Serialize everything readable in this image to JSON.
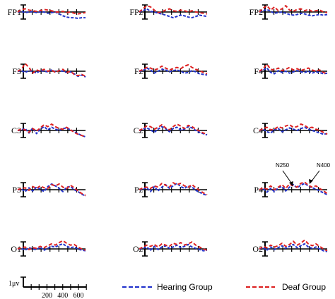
{
  "chart_data": {
    "type": "line",
    "series_names": [
      "Hearing Group",
      "Deaf Group"
    ],
    "colors": {
      "hearing": "#2233cc",
      "deaf": "#dd2222",
      "axis": "#000000"
    },
    "scale_bar": {
      "label": "1μv"
    },
    "x_axis": {
      "ticks": [
        200,
        400,
        600
      ],
      "range_ms": [
        -100,
        700
      ]
    },
    "annotations": [
      {
        "text": "N250"
      },
      {
        "text": "N400"
      }
    ],
    "electrodes": [
      {
        "name": "FP1",
        "hearing": [
          0,
          0.1,
          -0.1,
          0,
          0.05,
          -0.1,
          0,
          0,
          -0.2,
          -0.1,
          0,
          -0.3,
          -0.6,
          -0.8,
          -0.9,
          -0.9,
          -1.0,
          -0.9,
          -0.9
        ],
        "deaf": [
          0,
          0.4,
          0.5,
          0.3,
          0.2,
          0.1,
          0.2,
          0.4,
          0.3,
          0.2,
          0,
          0,
          0.1,
          -0.1,
          0,
          -0.2,
          -0.3,
          -0.2,
          -0.1
        ]
      },
      {
        "name": "FPz",
        "hearing": [
          0,
          0.2,
          0.5,
          0.1,
          0,
          -0.2,
          -0.3,
          -0.5,
          -0.7,
          -0.9,
          -0.7,
          -0.5,
          -0.6,
          -0.8,
          -0.9,
          -0.7,
          -0.5,
          -0.6,
          -0.7
        ],
        "deaf": [
          0,
          0.5,
          1.0,
          0.8,
          0.3,
          -0.1,
          0,
          0.3,
          0.5,
          0.2,
          0.1,
          0.3,
          0.2,
          0,
          0.2,
          0,
          -0.1,
          -0.2,
          -0.3
        ]
      },
      {
        "name": "FP2",
        "hearing": [
          0,
          0.2,
          0.4,
          0.1,
          -0.2,
          -0.1,
          0,
          -0.2,
          -0.4,
          -0.5,
          -0.4,
          -0.2,
          -0.3,
          -0.5,
          -0.6,
          -0.5,
          -0.4,
          -0.5,
          -0.4
        ],
        "deaf": [
          0,
          0.6,
          1.0,
          0.3,
          0.8,
          0.2,
          0.5,
          1.0,
          0.3,
          0.1,
          0.4,
          0.5,
          0.2,
          0.4,
          0.1,
          0.2,
          0.3,
          0,
          -0.1
        ]
      },
      {
        "name": "F3",
        "hearing": [
          0,
          0.1,
          -0.2,
          0.1,
          0,
          -0.3,
          0.1,
          0,
          -0.1,
          0.2,
          -0.1,
          0.1,
          0,
          -0.2,
          -0.1,
          -0.4,
          -0.8,
          -0.6,
          -0.9
        ],
        "deaf": [
          0,
          0.3,
          1.2,
          0.6,
          -0.3,
          0.2,
          0,
          0.3,
          0,
          0.2,
          -0.2,
          0.1,
          0.3,
          -0.2,
          0,
          -0.5,
          -0.7,
          -0.5,
          -0.8
        ]
      },
      {
        "name": "Fz",
        "hearing": [
          0,
          0.1,
          0.5,
          0.2,
          -0.3,
          0,
          0.3,
          0.2,
          -0.1,
          0.1,
          0.2,
          0,
          -0.3,
          -0.2,
          0.1,
          -0.1,
          -0.4,
          -0.5,
          -0.6
        ],
        "deaf": [
          0,
          0.3,
          0.6,
          0.5,
          0.2,
          0.4,
          0.8,
          0.5,
          0.2,
          0.4,
          0.6,
          0.4,
          0.8,
          1.0,
          0.6,
          0.3,
          0.1,
          -0.2,
          -0.4
        ]
      },
      {
        "name": "F4",
        "hearing": [
          0,
          0.2,
          0.5,
          -0.2,
          -0.4,
          0.1,
          -0.2,
          0,
          -0.3,
          -0.1,
          0.1,
          -0.1,
          -0.2,
          0,
          -0.3,
          -0.1,
          -0.2,
          -0.4,
          -0.3
        ],
        "deaf": [
          0,
          0.4,
          1.1,
          0.3,
          0.2,
          0.5,
          0.1,
          0.3,
          0.6,
          0.2,
          0.4,
          0.1,
          0.3,
          0.5,
          0.2,
          0,
          0.2,
          -0.2,
          -0.4
        ]
      },
      {
        "name": "C3",
        "hearing": [
          0,
          0.1,
          0.3,
          -0.4,
          0.4,
          -0.5,
          0.2,
          0.6,
          0.1,
          0.5,
          0.2,
          0,
          0.3,
          0.4,
          0.1,
          -0.2,
          -0.5,
          -0.8,
          -1.0
        ],
        "deaf": [
          0,
          0.2,
          0.1,
          -0.3,
          0.3,
          -0.1,
          0.4,
          0.9,
          0.6,
          1.0,
          0.6,
          0.3,
          0.2,
          0.5,
          0.1,
          -0.3,
          -0.6,
          -0.8,
          -1.0
        ]
      },
      {
        "name": "Cz",
        "hearing": [
          0,
          0.2,
          0.4,
          0.1,
          -0.3,
          0.2,
          0.6,
          0.3,
          -0.2,
          0.3,
          0.5,
          0.1,
          0.2,
          0.6,
          0.4,
          0,
          -0.3,
          -0.5,
          -0.7
        ],
        "deaf": [
          0,
          0.3,
          0.7,
          0.6,
          0.2,
          0.5,
          0.9,
          0.4,
          0.1,
          0.6,
          1.0,
          0.7,
          0.3,
          0.8,
          0.6,
          0.2,
          -0.1,
          -0.4,
          -0.6
        ]
      },
      {
        "name": "C4",
        "hearing": [
          0,
          0.2,
          -0.2,
          -0.4,
          0.1,
          0.3,
          -0.2,
          0.1,
          0.4,
          0.2,
          0,
          0.3,
          0.5,
          0.2,
          0,
          -0.2,
          -0.4,
          -0.6,
          -0.5
        ],
        "deaf": [
          0,
          0.3,
          0.5,
          0.1,
          0.2,
          0.6,
          0.4,
          0.7,
          0.9,
          0.5,
          0.6,
          1.0,
          0.8,
          0.4,
          0.5,
          0.2,
          0,
          -0.3,
          -0.6
        ]
      },
      {
        "name": "P3",
        "hearing": [
          0,
          0.1,
          -0.3,
          0.3,
          -0.2,
          0.4,
          0.1,
          -0.3,
          0.5,
          0.9,
          0.6,
          0.2,
          -0.3,
          0.4,
          0.5,
          0,
          -0.3,
          -0.7,
          -1.0
        ],
        "deaf": [
          0,
          0.2,
          0.3,
          -0.1,
          0.5,
          0.2,
          0.6,
          0.3,
          0.2,
          0.8,
          0.6,
          0.9,
          0.4,
          0.2,
          0.7,
          0.3,
          -0.2,
          -0.6,
          -0.9
        ]
      },
      {
        "name": "Pz",
        "hearing": [
          0,
          0.1,
          0.3,
          -0.3,
          0.5,
          -0.2,
          0.4,
          0.8,
          0.2,
          0.6,
          1.0,
          0.5,
          0.2,
          0.6,
          0.4,
          -0.1,
          -0.4,
          -0.7,
          -0.9
        ],
        "deaf": [
          0,
          0.3,
          0.4,
          0.2,
          0.6,
          0.4,
          1.0,
          0.7,
          0.4,
          1.1,
          0.8,
          1.0,
          0.6,
          0.4,
          0.8,
          0.3,
          -0.1,
          -0.5,
          -0.8
        ]
      },
      {
        "name": "P4",
        "hearing": [
          0,
          0.2,
          -0.4,
          0.2,
          -0.3,
          0.3,
          0.5,
          -0.2,
          0.4,
          0.8,
          0.3,
          0.7,
          1.0,
          0.6,
          0.3,
          0.1,
          -0.2,
          -0.5,
          -0.8
        ],
        "deaf": [
          0,
          0.3,
          0.1,
          0.6,
          0,
          0.4,
          0.8,
          0.2,
          0.9,
          0.6,
          0.4,
          1.0,
          1.2,
          0.7,
          0.4,
          0.6,
          0.2,
          -0.2,
          -0.6
        ]
      },
      {
        "name": "O1",
        "hearing": [
          0,
          0.1,
          -0.2,
          0.2,
          0,
          -0.1,
          0.3,
          -0.2,
          0.1,
          0.4,
          0.3,
          0.6,
          0.8,
          0.4,
          0.2,
          0.3,
          0,
          -0.2,
          -0.3
        ],
        "deaf": [
          0,
          0.2,
          0.3,
          -0.1,
          0.2,
          0.1,
          0.4,
          0.2,
          0.5,
          0.8,
          0.6,
          1.0,
          1.3,
          0.9,
          0.6,
          0.7,
          0.3,
          0,
          -0.2
        ]
      },
      {
        "name": "Oz",
        "hearing": [
          0,
          0.1,
          0.3,
          -0.2,
          0.4,
          -0.1,
          0.3,
          0.5,
          0.1,
          0.3,
          0.6,
          0.2,
          0.4,
          0.7,
          0.3,
          0.1,
          -0.1,
          -0.3,
          -0.2
        ],
        "deaf": [
          0,
          0.3,
          0.6,
          0.4,
          0.7,
          0.3,
          0.8,
          0.6,
          0.4,
          0.9,
          0.7,
          1.0,
          0.6,
          0.8,
          1.1,
          0.6,
          0.3,
          0,
          -0.2
        ]
      },
      {
        "name": "O2",
        "hearing": [
          0,
          0.2,
          -0.2,
          0.3,
          -0.1,
          0.2,
          0.5,
          0.1,
          0.4,
          0.7,
          0.2,
          0.5,
          0.8,
          0.3,
          0.1,
          0.3,
          0,
          -0.3,
          -0.4
        ],
        "deaf": [
          0,
          0.4,
          0.2,
          0.6,
          0.3,
          0.5,
          0.9,
          0.4,
          0.7,
          1.2,
          0.6,
          0.9,
          1.4,
          0.8,
          0.5,
          0.8,
          0.4,
          0,
          -0.3
        ]
      }
    ]
  }
}
